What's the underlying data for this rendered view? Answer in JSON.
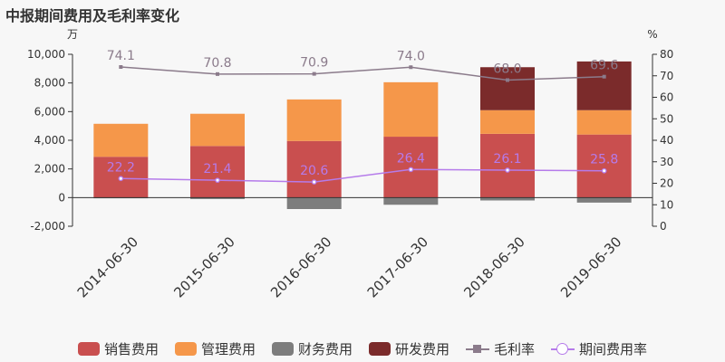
{
  "title": "中报期间费用及毛利率变化",
  "left_unit": "万",
  "right_unit": "%",
  "chart_data": {
    "type": "bar",
    "stacked": true,
    "categories": [
      "2014-06-30",
      "2015-06-30",
      "2016-06-30",
      "2017-06-30",
      "2018-06-30",
      "2019-06-30"
    ],
    "series": [
      {
        "name": "销售费用",
        "color": "#c94f4f",
        "values": [
          2850,
          3600,
          3950,
          4250,
          4450,
          4400
        ]
      },
      {
        "name": "管理费用",
        "color": "#f5974a",
        "values": [
          2300,
          2250,
          2900,
          3800,
          1650,
          1700
        ]
      },
      {
        "name": "财务费用",
        "color": "#7d7d7d",
        "values": [
          -50,
          -100,
          -800,
          -500,
          -200,
          -350
        ]
      },
      {
        "name": "研发费用",
        "color": "#7b2b2b",
        "values": [
          0,
          0,
          0,
          0,
          3000,
          3400
        ]
      }
    ],
    "lines": [
      {
        "name": "毛利率",
        "color": "#8b7b8b",
        "marker": "square",
        "values": [
          74.1,
          70.8,
          70.9,
          74.0,
          68.0,
          69.6
        ],
        "labels": [
          "74.1",
          "70.8",
          "70.9",
          "74.0",
          "68.0",
          "69.6"
        ]
      },
      {
        "name": "期间费用率",
        "color": "#b57bea",
        "marker": "circle",
        "values": [
          22.2,
          21.4,
          20.6,
          26.4,
          26.1,
          25.8
        ],
        "labels": [
          "22.2",
          "21.4",
          "20.6",
          "26.4",
          "26.1",
          "25.8"
        ]
      }
    ],
    "ylim": [
      -2000,
      10000
    ],
    "yticks": [
      -2000,
      0,
      2000,
      4000,
      6000,
      8000,
      10000
    ],
    "ytick_labels": [
      "-2,000",
      "0",
      "2,000",
      "4,000",
      "6,000",
      "8,000",
      "10,000"
    ],
    "y2lim": [
      0,
      80
    ],
    "y2ticks": [
      0,
      10,
      20,
      30,
      40,
      50,
      60,
      70,
      80
    ],
    "grid": false,
    "legend_position": "bottom"
  }
}
